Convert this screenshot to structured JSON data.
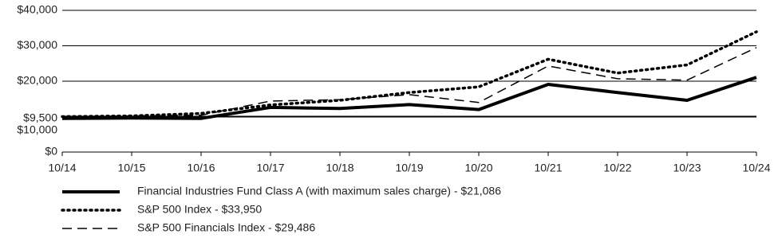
{
  "chart_data": {
    "type": "line",
    "categories": [
      "10/14",
      "10/15",
      "10/16",
      "10/17",
      "10/18",
      "10/19",
      "10/20",
      "10/21",
      "10/22",
      "10/23",
      "10/24"
    ],
    "series": [
      {
        "name": "Financial Industries Fund Class A (with maximum sales charge)  - $21,086",
        "color": "#000000",
        "style": "solid",
        "values": [
          9500,
          9600,
          9500,
          12600,
          12300,
          13400,
          12000,
          19100,
          16800,
          14600,
          21086
        ]
      },
      {
        "name": "S&P 500 Index - $33,950",
        "color": "#000000",
        "style": "dotted",
        "values": [
          10000,
          10200,
          10900,
          13300,
          14600,
          16800,
          18400,
          26200,
          22300,
          24600,
          33950
        ]
      },
      {
        "name": "S&P 500 Financials Index - $29,486",
        "color": "#000000",
        "style": "dashed",
        "values": [
          10000,
          10200,
          10400,
          14400,
          14800,
          16200,
          14000,
          24300,
          20700,
          20300,
          29486
        ]
      }
    ],
    "ylim": [
      0,
      40000
    ],
    "yticks": [
      {
        "value": 0,
        "label": "$0"
      },
      {
        "value": 9500,
        "label": "$9,500"
      },
      {
        "value": 10000,
        "label": "$10,000"
      },
      {
        "value": 20000,
        "label": "$20,000"
      },
      {
        "value": 30000,
        "label": "$30,000"
      },
      {
        "value": 40000,
        "label": "$40,000"
      }
    ],
    "grid": true
  }
}
